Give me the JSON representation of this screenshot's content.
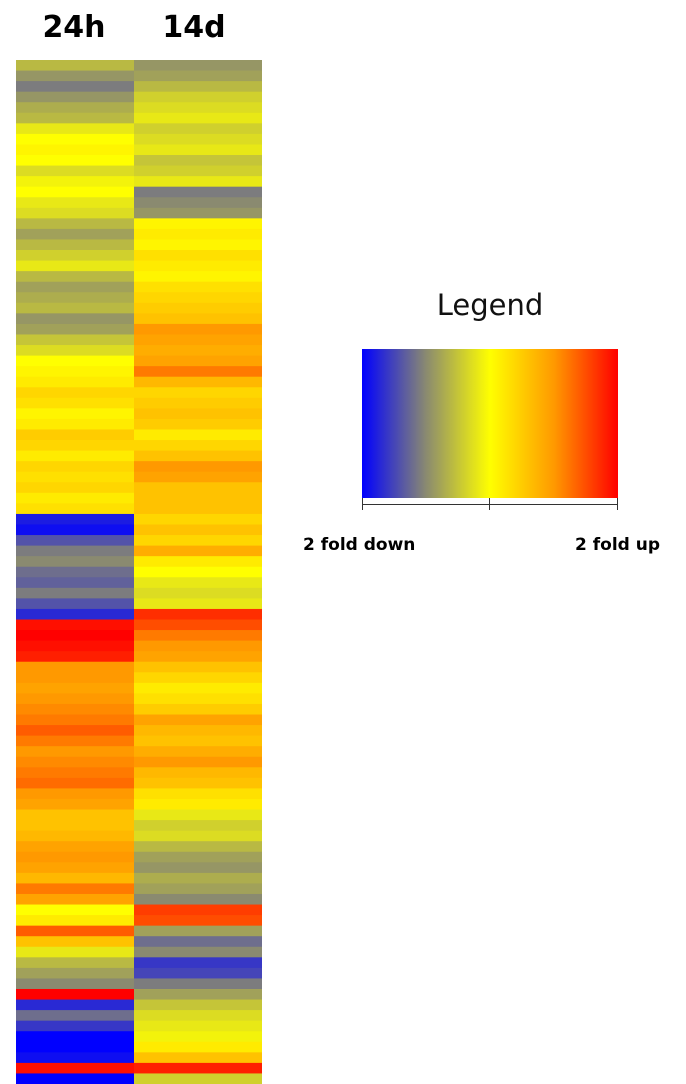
{
  "chart_data": {
    "type": "heatmap",
    "columns": [
      "24h",
      "14d"
    ],
    "colorscale": {
      "colors": [
        "#0000ff",
        "#8a8a70",
        "#ffff00",
        "#ff9900",
        "#ff0000"
      ],
      "min_label": "2 fold down",
      "max_label": "2 fold up"
    },
    "legend": {
      "title": "Legend"
    },
    "rows_24h": [
      -0.3,
      -0.45,
      -0.55,
      -0.45,
      -0.35,
      -0.3,
      -0.1,
      0,
      0.05,
      0,
      -0.15,
      -0.05,
      0,
      -0.1,
      -0.15,
      -0.3,
      -0.4,
      -0.3,
      -0.2,
      -0.1,
      -0.3,
      -0.4,
      -0.35,
      -0.3,
      -0.45,
      -0.4,
      -0.25,
      -0.15,
      0,
      0.05,
      0.1,
      0.2,
      0.15,
      0.05,
      0.1,
      0.25,
      0.2,
      0.1,
      0.2,
      0.15,
      0.2,
      0.1,
      0.15,
      -0.9,
      -0.95,
      -0.7,
      -0.55,
      -0.5,
      -0.6,
      -0.65,
      -0.55,
      -0.7,
      -0.85,
      0.95,
      1.0,
      0.95,
      0.9,
      0.5,
      0.5,
      0.45,
      0.5,
      0.55,
      0.6,
      0.7,
      0.6,
      0.5,
      0.55,
      0.6,
      0.65,
      0.5,
      0.45,
      0.3,
      0.3,
      0.35,
      0.45,
      0.5,
      0.45,
      0.35,
      0.6,
      0.45,
      0.0,
      0.1,
      0.7,
      0.3,
      -0.1,
      -0.3,
      -0.4,
      -0.5,
      1.0,
      -0.85,
      -0.6,
      -0.8,
      -1.0,
      -1.0,
      -0.95,
      0.95,
      -1.0
    ],
    "rows_14d": [
      -0.45,
      -0.4,
      -0.3,
      -0.2,
      -0.15,
      -0.1,
      -0.2,
      -0.15,
      -0.1,
      -0.25,
      -0.2,
      -0.1,
      -0.55,
      -0.5,
      -0.45,
      0.05,
      0.1,
      0.05,
      0.15,
      0.1,
      0.05,
      0.15,
      0.2,
      0.25,
      0.3,
      0.5,
      0.45,
      0.4,
      0.45,
      0.6,
      0.35,
      0.2,
      0.25,
      0.3,
      0.25,
      0.1,
      0.2,
      0.3,
      0.5,
      0.45,
      0.3,
      0.3,
      0.3,
      0.2,
      0.3,
      0.2,
      0.4,
      0.1,
      0.0,
      -0.1,
      -0.15,
      -0.1,
      0.85,
      0.75,
      0.6,
      0.5,
      0.45,
      0.3,
      0.2,
      0.1,
      0.15,
      0.25,
      0.45,
      0.35,
      0.3,
      0.4,
      0.5,
      0.35,
      0.3,
      0.15,
      0.1,
      -0.1,
      -0.2,
      -0.15,
      -0.3,
      -0.4,
      -0.45,
      -0.35,
      -0.4,
      -0.5,
      0.8,
      0.75,
      -0.4,
      -0.6,
      -0.5,
      -0.8,
      -0.75,
      -0.55,
      -0.4,
      -0.25,
      -0.15,
      -0.1,
      -0.05,
      0.1,
      0.3,
      0.9,
      -0.2
    ]
  }
}
